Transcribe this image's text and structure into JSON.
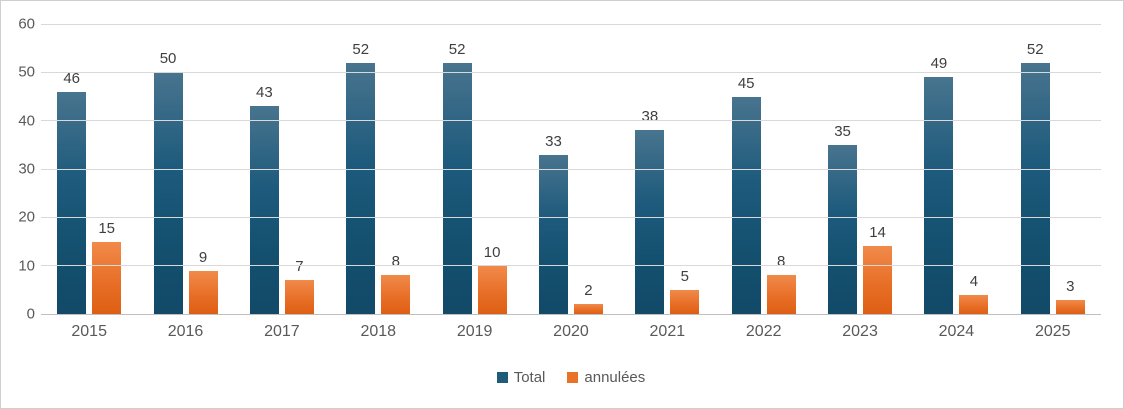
{
  "chart_data": {
    "type": "bar",
    "title": "",
    "xlabel": "",
    "ylabel": "",
    "categories": [
      "2015",
      "2016",
      "2017",
      "2018",
      "2019",
      "2020",
      "2021",
      "2022",
      "2023",
      "2024",
      "2025"
    ],
    "series": [
      {
        "name": "Total",
        "color": "#1f5c78",
        "values": [
          46,
          50,
          43,
          52,
          52,
          33,
          38,
          45,
          35,
          49,
          52
        ]
      },
      {
        "name": "annulées",
        "color": "#e8722a",
        "values": [
          15,
          9,
          7,
          8,
          10,
          2,
          5,
          8,
          14,
          4,
          3
        ]
      }
    ],
    "ylim": [
      0,
      60
    ],
    "y_ticks": [
      60,
      50,
      40,
      30,
      20,
      10,
      0
    ],
    "grid": true,
    "data_labels": true,
    "legend_position": "bottom"
  },
  "colors": {
    "gridline": "#d9d9d9",
    "axis_line": "#bfbfbf",
    "tick_label": "#595959",
    "data_label": "#3f3f3f",
    "frame_border": "#cfcfcf",
    "background": "#ffffff"
  }
}
